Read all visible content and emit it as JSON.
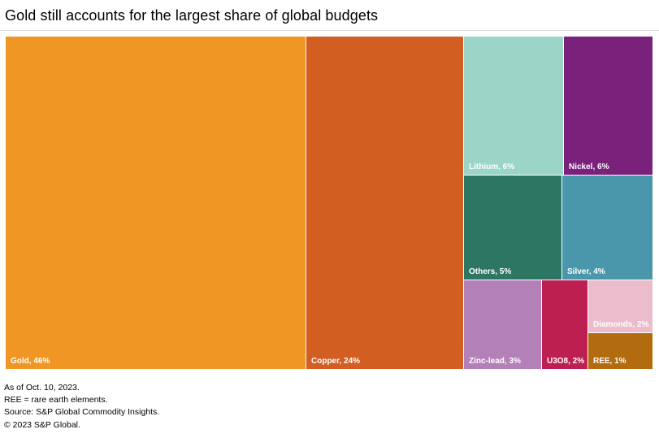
{
  "chart_data": {
    "type": "treemap",
    "title": "Gold still accounts for the largest share of global budgets",
    "unit": "%",
    "segments": [
      {
        "name": "Gold",
        "label": "Gold, 46%",
        "value": 46,
        "color": "#f09624",
        "text_color": "#ffffff"
      },
      {
        "name": "Copper",
        "label": "Copper, 24%",
        "value": 24,
        "color": "#d25e22",
        "text_color": "#ffffff"
      },
      {
        "name": "Lithium",
        "label": "Lithium, 6%",
        "value": 6,
        "color": "#9bd5c8",
        "text_color": "#ffffff"
      },
      {
        "name": "Nickel",
        "label": "Nickel, 6%",
        "value": 6,
        "color": "#7a217c",
        "text_color": "#ffffff"
      },
      {
        "name": "Others",
        "label": "Others, 5%",
        "value": 5,
        "color": "#2d7663",
        "text_color": "#ffffff"
      },
      {
        "name": "Silver",
        "label": "Silver, 4%",
        "value": 4,
        "color": "#4a97ab",
        "text_color": "#ffffff"
      },
      {
        "name": "Zinc-lead",
        "label": "Zinc-lead, 3%",
        "value": 3,
        "color": "#b380b8",
        "text_color": "#ffffff"
      },
      {
        "name": "U3O8",
        "label": "U3O8, 2%",
        "value": 2,
        "color": "#bd1f50",
        "text_color": "#ffffff"
      },
      {
        "name": "Diamonds",
        "label": "Diamonds, 2%",
        "value": 2,
        "color": "#ebbccc",
        "text_color": "#ffffff"
      },
      {
        "name": "REE",
        "label": "REE, 1%",
        "value": 1,
        "color": "#b36b10",
        "text_color": "#ffffff"
      }
    ]
  },
  "notes": [
    "As of Oct. 10, 2023.",
    "REE = rare earth elements.",
    "Source: S&P Global Commodity Insights.",
    "© 2023 S&P Global."
  ]
}
